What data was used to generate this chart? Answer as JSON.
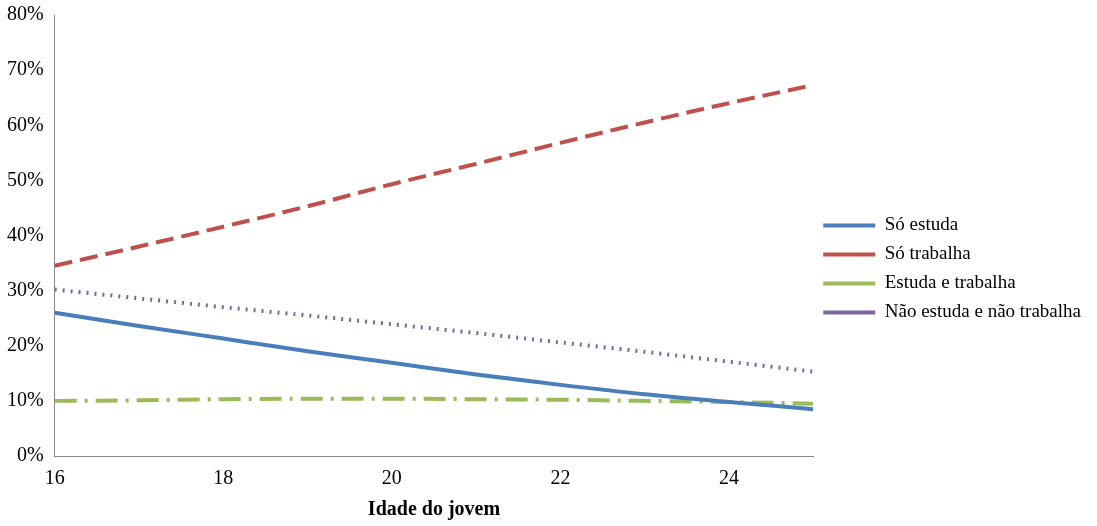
{
  "chart_data": {
    "type": "line",
    "xlabel": "Idade do jovem",
    "x": [
      16,
      17,
      18,
      19,
      20,
      21,
      22,
      23,
      24,
      25
    ],
    "series": [
      {
        "name": "Só estuda",
        "color": "#4a7ebb",
        "line_style": "solid",
        "values": [
          26,
          23.6,
          21.3,
          19,
          16.9,
          14.8,
          12.9,
          11.2,
          9.8,
          8.5
        ]
      },
      {
        "name": "Só trabalha",
        "color": "#c0504d",
        "line_style": "dashed",
        "values": [
          34.5,
          38,
          41.6,
          45.3,
          49.3,
          53,
          56.8,
          60.5,
          64,
          67.3
        ]
      },
      {
        "name": "Estuda e trabalha",
        "color": "#9bbb59",
        "line_style": "dashdot",
        "values": [
          10,
          10.1,
          10.3,
          10.4,
          10.4,
          10.3,
          10.2,
          10,
          9.8,
          9.5
        ]
      },
      {
        "name": "Não estuda e não trabalha",
        "color": "#8064a2",
        "line_style": "dotted",
        "values": [
          30.2,
          28.6,
          27,
          25.5,
          23.9,
          22.3,
          20.6,
          18.9,
          17.1,
          15.3
        ]
      }
    ],
    "xlim": [
      16,
      25
    ],
    "xticks": [
      16,
      18,
      20,
      22,
      24
    ],
    "ylim": [
      0,
      80
    ],
    "yticks": [
      {
        "value": 0,
        "label": "0%"
      },
      {
        "value": 10,
        "label": "10%"
      },
      {
        "value": 20,
        "label": "20%"
      },
      {
        "value": 30,
        "label": "30%"
      },
      {
        "value": 40,
        "label": "40%"
      },
      {
        "value": 50,
        "label": "50%"
      },
      {
        "value": 60,
        "label": "60%"
      },
      {
        "value": 70,
        "label": "70%"
      },
      {
        "value": 80,
        "label": "80%"
      }
    ],
    "grid": false,
    "legend": "right",
    "marker": "none"
  }
}
